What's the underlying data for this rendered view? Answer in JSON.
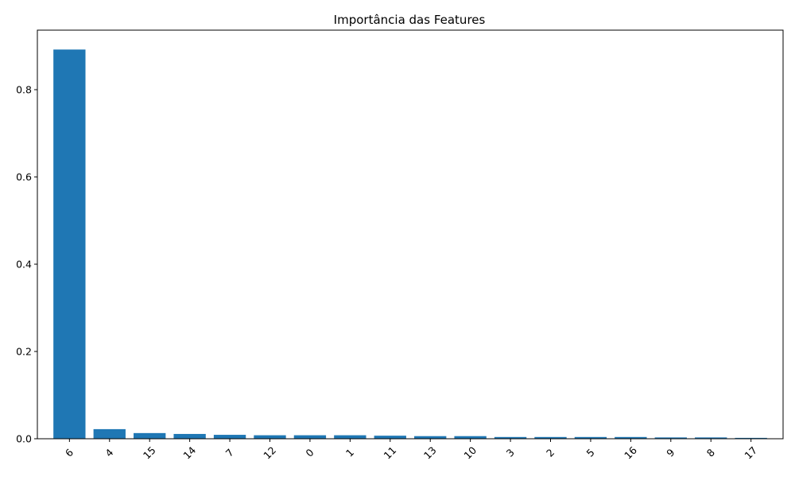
{
  "chart_data": {
    "type": "bar",
    "title": "Importância das Features",
    "xlabel": "",
    "ylabel": "",
    "categories": [
      "6",
      "4",
      "15",
      "14",
      "7",
      "12",
      "0",
      "1",
      "11",
      "13",
      "10",
      "3",
      "2",
      "5",
      "16",
      "9",
      "8",
      "17"
    ],
    "values": [
      0.892,
      0.022,
      0.013,
      0.011,
      0.009,
      0.008,
      0.008,
      0.008,
      0.007,
      0.006,
      0.006,
      0.004,
      0.004,
      0.004,
      0.004,
      0.003,
      0.003,
      0.002
    ],
    "ylim": [
      0,
      0.9364
    ],
    "yticks": [
      "0.0",
      "0.2",
      "0.4",
      "0.6",
      "0.8"
    ],
    "ytick_values": [
      0.0,
      0.2,
      0.4,
      0.6,
      0.8
    ],
    "grid": false,
    "legend": "none",
    "bar_color": "#1f77b4",
    "xtick_rotation": "45"
  }
}
